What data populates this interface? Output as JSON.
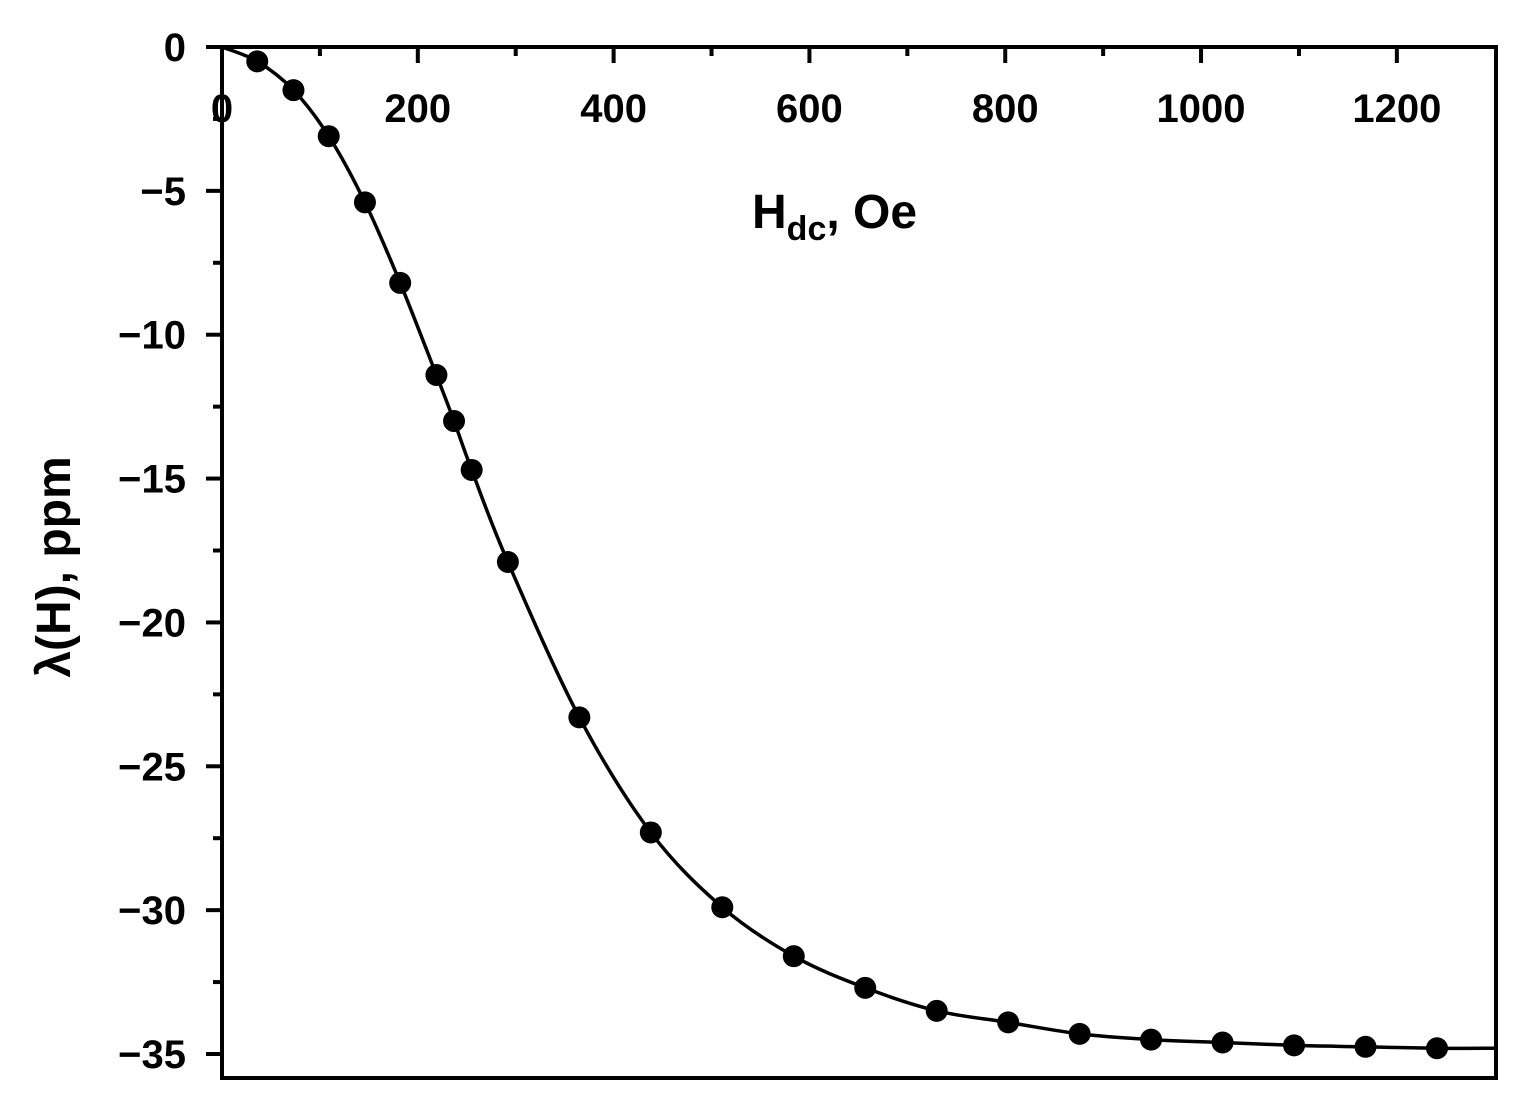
{
  "chart_data": {
    "type": "line",
    "title": "",
    "xlabel_main": "H",
    "xlabel_sub": "dc",
    "xlabel_rest": ", Oe",
    "ylabel": "λ(H), ppm",
    "xlim": [
      0,
      1300
    ],
    "ylim": [
      -36,
      0
    ],
    "x_ticks": [
      0,
      200,
      400,
      600,
      800,
      1000,
      1200
    ],
    "x_tick_labels": [
      "0",
      "200",
      "400",
      "600",
      "800",
      "1000",
      "1200"
    ],
    "y_ticks": [
      0,
      -5,
      -10,
      -15,
      -20,
      -25,
      -30,
      -35
    ],
    "y_tick_labels": [
      "0",
      "−5",
      "−10",
      "−15",
      "−20",
      "−25",
      "−30",
      "−35"
    ],
    "grid": false,
    "legend": "none",
    "x_axis_position": "top",
    "series": [
      {
        "color": "#000000",
        "marker": "circle",
        "x": [
          0,
          36,
          73,
          109,
          146,
          182,
          219,
          237,
          255,
          292,
          365,
          438,
          511,
          584,
          657,
          730,
          803,
          876,
          949,
          1022,
          1095,
          1168,
          1241
        ],
        "y": [
          0,
          -0.5,
          -1.5,
          -3.1,
          -5.4,
          -8.2,
          -11.4,
          -13.0,
          -14.7,
          -17.9,
          -23.3,
          -27.3,
          -29.9,
          -31.6,
          -32.7,
          -33.5,
          -33.9,
          -34.3,
          -34.5,
          -34.6,
          -34.7,
          -34.75,
          -34.8
        ]
      }
    ],
    "curve_end": {
      "x": 1300,
      "y": -34.8
    }
  }
}
